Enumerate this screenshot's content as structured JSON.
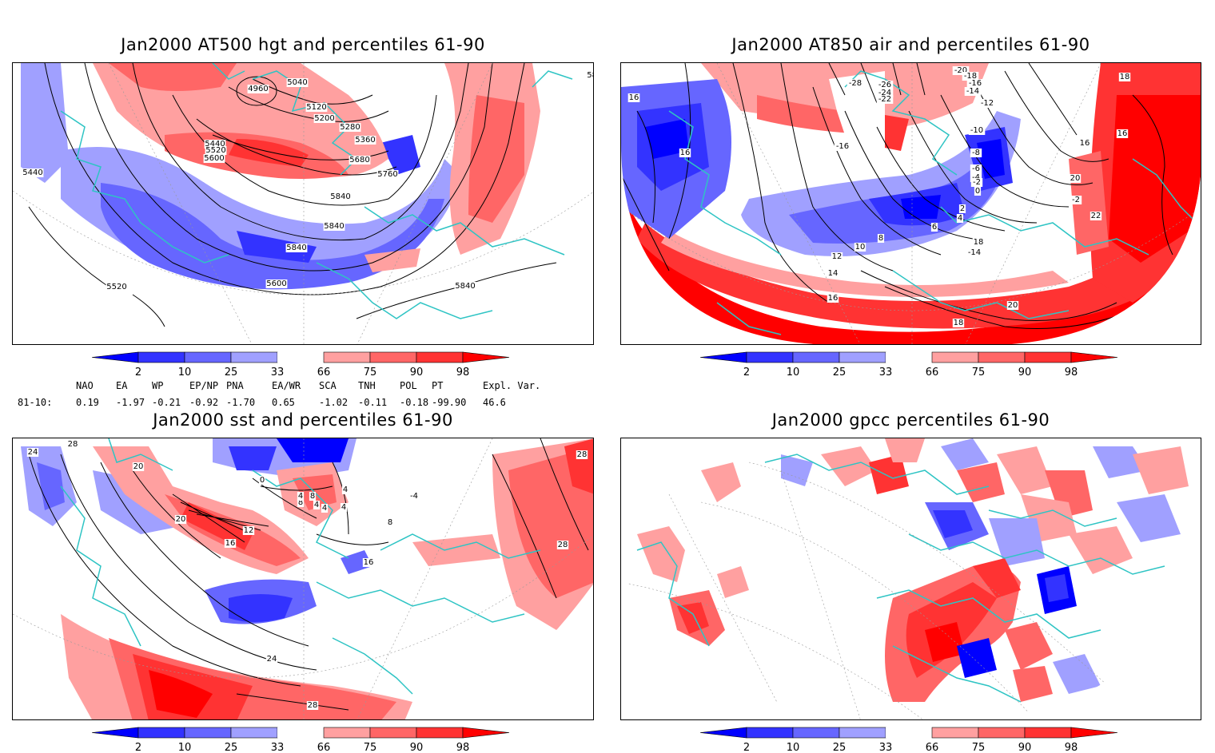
{
  "panels": [
    {
      "title": "Jan2000 AT500 hgt and percentiles 61-90",
      "contour_labels": [
        "4960",
        "5040",
        "5120",
        "5200",
        "5280",
        "5360",
        "5440",
        "5520",
        "5600",
        "5680",
        "5760",
        "5840",
        "5840",
        "5840",
        "5440",
        "5520",
        "5600",
        "5840",
        "5840"
      ]
    },
    {
      "title": "Jan2000 AT850 air and percentiles 61-90",
      "contour_labels": [
        "14",
        "16",
        "-28",
        "-26",
        "-24",
        "-22",
        "-20",
        "-18",
        "-16",
        "-14",
        "-12",
        "-10",
        "-8",
        "-6",
        "-4",
        "-2",
        "0",
        "2",
        "4",
        "6",
        "8",
        "10",
        "12",
        "14",
        "16",
        "16",
        "16",
        "18",
        "18",
        "20",
        "22",
        "20",
        "18",
        "-14",
        "-16",
        "-2",
        "16"
      ]
    },
    {
      "title": "Jan2000 sst and percentiles 61-90",
      "contour_labels": [
        "24",
        "28",
        "20",
        "20",
        "16",
        "12",
        "8",
        "4",
        "0",
        "4",
        "4",
        "8",
        "4",
        "4",
        "16",
        "8",
        "24",
        "28",
        "28",
        "28",
        "-4"
      ]
    },
    {
      "title": "Jan2000 gpcc percentiles 61-90",
      "contour_labels": []
    }
  ],
  "colorbar": {
    "ticks": [
      "2",
      "10",
      "25",
      "33",
      "66",
      "75",
      "90",
      "98"
    ],
    "colors": [
      "#0000ff",
      "#3333ff",
      "#6666ff",
      "#a0a0ff",
      "#ffffff",
      "#ffa0a0",
      "#ff6666",
      "#ff3333",
      "#ff0000"
    ]
  },
  "stats": {
    "header": [
      "NAO",
      "EA",
      "WP",
      "EP/NP",
      "PNA",
      "EA/WR",
      "SCA",
      "TNH",
      "POL",
      "PT",
      "Expl. Var."
    ],
    "row_label": "81-10:",
    "values": [
      "0.19",
      "-1.97",
      "-0.21",
      "-0.92",
      "-1.70",
      "0.65",
      "-1.02",
      "-0.11",
      "-0.18",
      "-99.90",
      "46.6"
    ]
  },
  "colors": {
    "coast": "#2ec4c4",
    "contour": "#000000",
    "blue": "#2233ee",
    "red": "#ee2222"
  }
}
